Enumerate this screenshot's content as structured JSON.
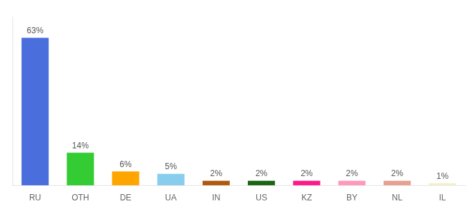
{
  "chart_data": {
    "type": "bar",
    "categories": [
      "RU",
      "OTH",
      "DE",
      "UA",
      "IN",
      "US",
      "KZ",
      "BY",
      "NL",
      "IL"
    ],
    "values": [
      63,
      14,
      6,
      5,
      2,
      2,
      2,
      2,
      2,
      1
    ],
    "value_labels": [
      "63%",
      "14%",
      "6%",
      "5%",
      "2%",
      "2%",
      "2%",
      "2%",
      "2%",
      "1%"
    ],
    "colors": [
      "#4a6fdc",
      "#33cc33",
      "#ffa500",
      "#88ccee",
      "#b05a10",
      "#1a6614",
      "#ff1a8c",
      "#ff99bb",
      "#e8a090",
      "#f0f0c8"
    ],
    "ylim": [
      0,
      72
    ],
    "grid": false,
    "data_labels": true,
    "tick_labels": "x"
  }
}
